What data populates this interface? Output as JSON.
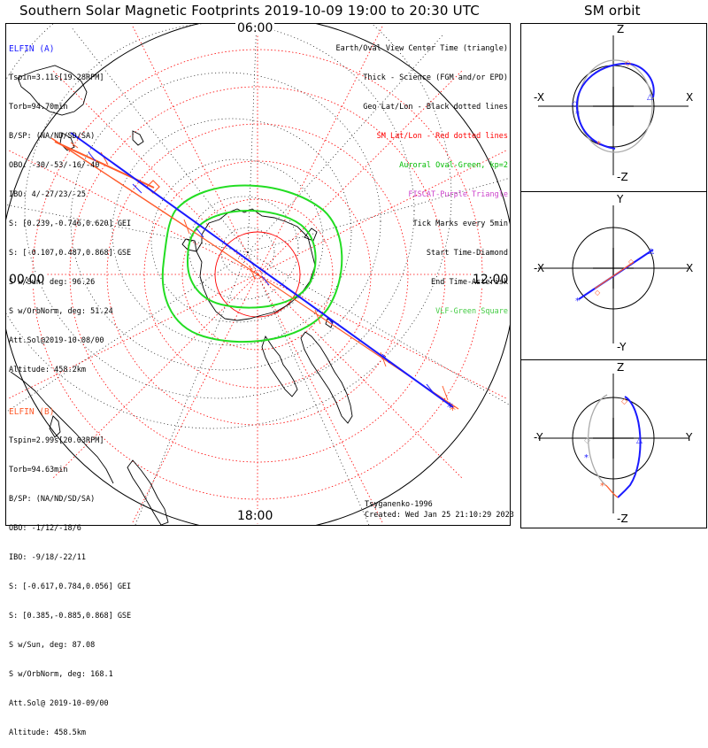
{
  "title": "Southern Solar Magnetic Footprints 2019-10-09 19:00 to 20:30 UTC",
  "sm_orbit_title": "SM orbit",
  "clock_labels": {
    "top": "06:00",
    "left": "00:00",
    "right": "12:00",
    "bottom": "18:00"
  },
  "elfin_a": {
    "name": "ELFIN (A)",
    "color": "#1a1aff",
    "lines": [
      "Tspin=3.11s[19.28RPM]",
      "Torb=94.70min",
      "B/SP: (NA/ND/SD/SA)",
      "OBO: -30/-53/-16/-40",
      "IBO: 4/-27/23/-25",
      "S: [0.239,-0.746,0.620] GEI",
      "S: [-0.107,0.487,0.868] GSE",
      "S w/Sun, deg: 96.26",
      "S w/OrbNorm, deg: 51.24",
      "Att.Sol@2019-10-08/00",
      "Altitude: 458.2km"
    ]
  },
  "elfin_b": {
    "name": "ELFIN (B)",
    "color": "#ff5a2a",
    "lines": [
      "Tspin=2.99s[20.03RPM]",
      "Torb=94.63min",
      "B/SP: (NA/ND/SD/SA)",
      "OBO: -1/12/-18/6",
      "IBO: -9/18/-22/11",
      "S: [-0.617,0.784,0.056] GEI",
      "S: [0.385,-0.885,0.868] GSE",
      "S w/Sun, deg: 87.08",
      "S w/OrbNorm, deg: 168.1",
      "Att.Sol@ 2019-10-09/00",
      "Altitude: 458.5km"
    ]
  },
  "legend": [
    {
      "text": "Earth/Oval View Center Time (triangle)",
      "color": "#000000"
    },
    {
      "text": "Thick - Science (FGM and/or EPD)",
      "color": "#000000"
    },
    {
      "text": "Geo Lat/Lon - Black dotted lines",
      "color": "#000000"
    },
    {
      "text": "SM Lat/Lon - Red dotted lines",
      "color": "#ff0000"
    },
    {
      "text": "Auroral Oval-Green, kp=2",
      "color": "#00bb00"
    },
    {
      "text": "FISCAT-Purple Triangle",
      "color": "#cc44cc"
    },
    {
      "text": "Tick Marks every 5min",
      "color": "#000000"
    },
    {
      "text": "Start Time-Diamond",
      "color": "#000000"
    },
    {
      "text": "End Time-Asterisk",
      "color": "#000000"
    },
    {
      "text": "VLF-Green Square",
      "color": "#44cc44"
    }
  ],
  "footer": {
    "author": "Tsyganenko-1996",
    "created": "Created: Wed Jan 25 21:10:29 2023"
  },
  "orbit_panels": [
    {
      "top": "Z",
      "bottom": "-Z",
      "left": "-X",
      "right": "X"
    },
    {
      "top": "Y",
      "bottom": "-Y",
      "left": "-X",
      "right": "X"
    },
    {
      "top": "Z",
      "bottom": "-Z",
      "left": "-Y",
      "right": "Y"
    }
  ],
  "colors": {
    "elfin_a": "#1a1aff",
    "elfin_b": "#ff5a2a",
    "sm_grid": "#ff0000",
    "auroral_oval": "#22dd22",
    "coast": "#000000"
  }
}
